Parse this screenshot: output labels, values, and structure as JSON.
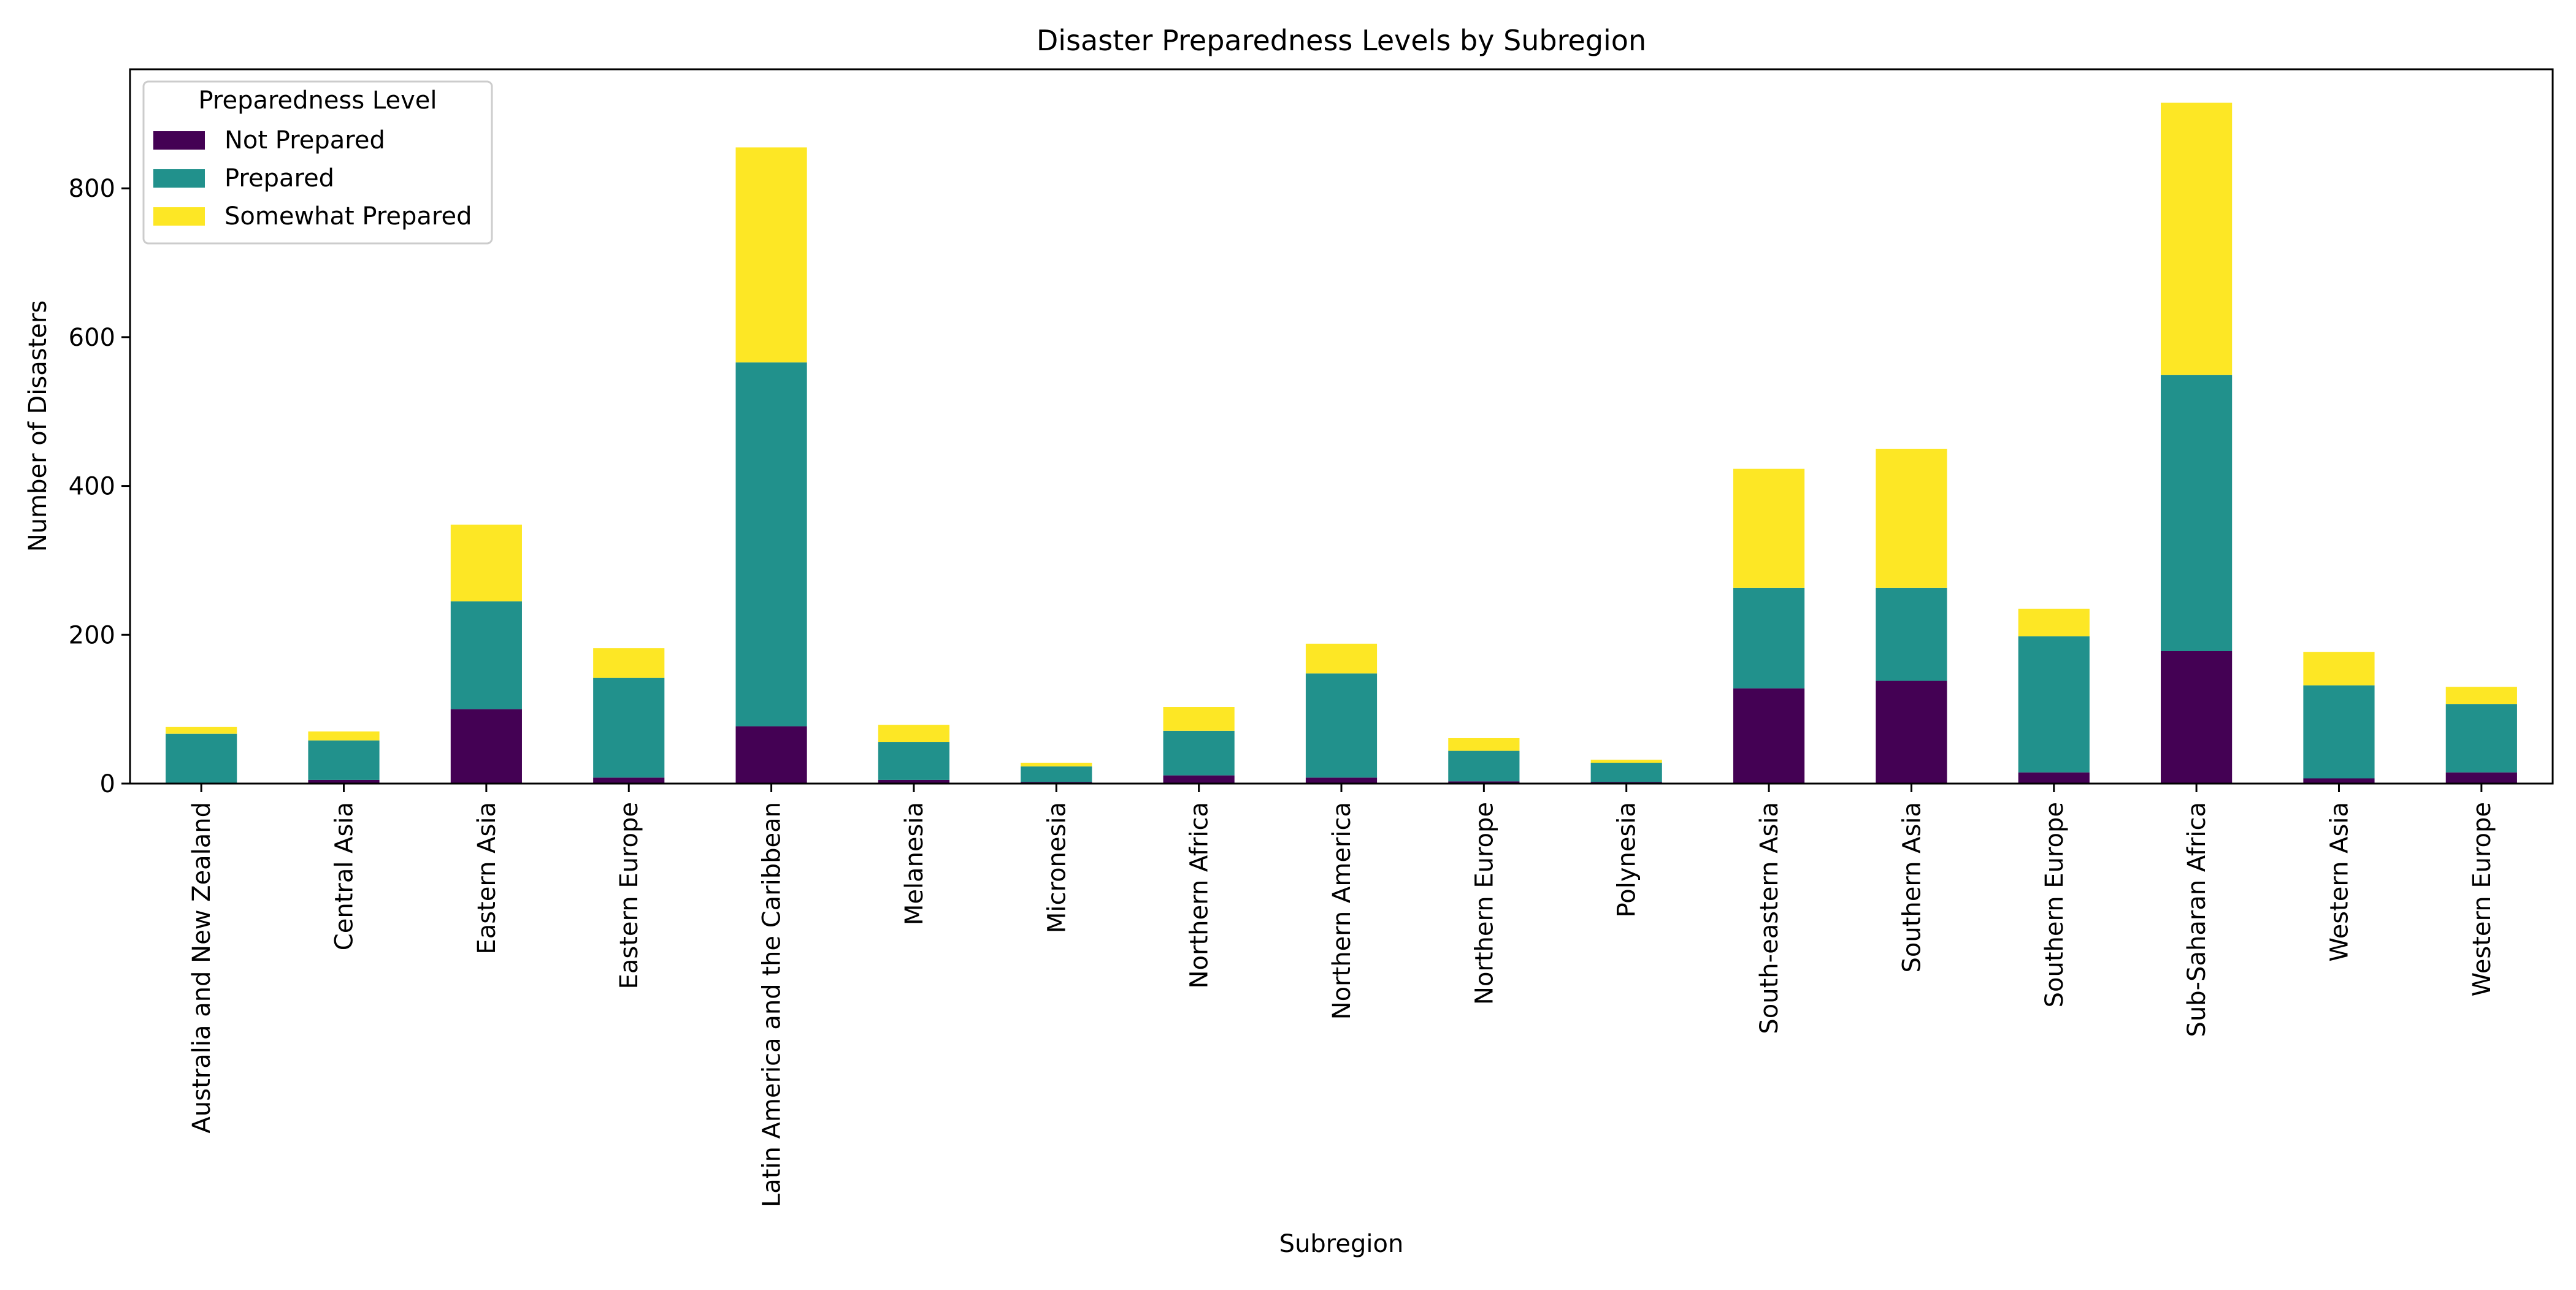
{
  "chart_data": {
    "type": "bar",
    "stacked": true,
    "title": "Disaster Preparedness Levels by Subregion",
    "xlabel": "Subregion",
    "ylabel": "Number of Disasters",
    "ylim": [
      0,
      960
    ],
    "yticks": [
      0,
      200,
      400,
      600,
      800
    ],
    "grid": false,
    "legend": {
      "title": "Preparedness Level",
      "placement": "top-left"
    },
    "categories": [
      "Australia and New Zealand",
      "Central Asia",
      "Eastern Asia",
      "Eastern Europe",
      "Latin America and the Caribbean",
      "Melanesia",
      "Micronesia",
      "Northern Africa",
      "Northern America",
      "Northern Europe",
      "Polynesia",
      "South-eastern Asia",
      "Southern Asia",
      "Southern Europe",
      "Sub-Saharan Africa",
      "Western Asia",
      "Western Europe"
    ],
    "series": [
      {
        "name": "Not Prepared",
        "color": "#440154",
        "values": [
          1,
          5,
          100,
          8,
          77,
          5,
          2,
          11,
          8,
          3,
          2,
          128,
          138,
          15,
          178,
          7,
          15
        ]
      },
      {
        "name": "Prepared",
        "color": "#21918c",
        "values": [
          66,
          53,
          145,
          134,
          489,
          51,
          21,
          60,
          140,
          41,
          26,
          135,
          125,
          183,
          371,
          125,
          92
        ]
      },
      {
        "name": "Somewhat Prepared",
        "color": "#fde725",
        "values": [
          9,
          12,
          103,
          40,
          289,
          23,
          5,
          32,
          40,
          17,
          4,
          160,
          187,
          37,
          366,
          45,
          23
        ]
      }
    ]
  }
}
